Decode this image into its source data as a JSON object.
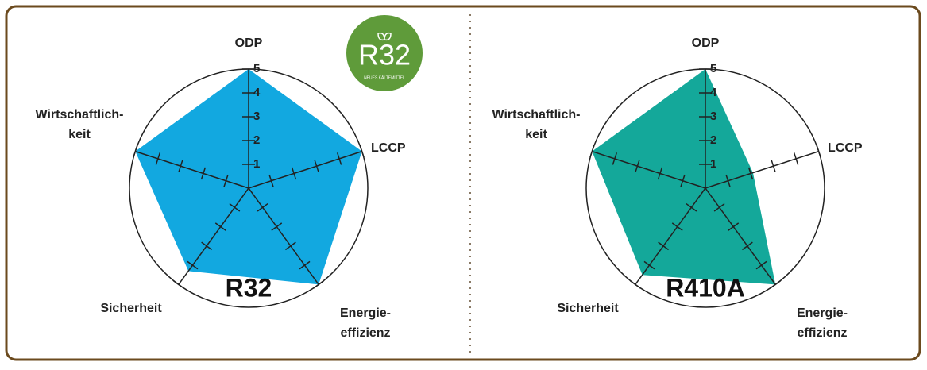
{
  "chart_data": [
    {
      "type": "radar",
      "label": "R32",
      "color": "#12a8e0",
      "categories": [
        [
          "ODP"
        ],
        [
          "LCCP"
        ],
        [
          "Energie-",
          "effizienz"
        ],
        [
          "Sicherheit"
        ],
        [
          "Wirtschaftlich-",
          "keit"
        ]
      ],
      "values": [
        5,
        5,
        5,
        4.3,
        5
      ],
      "rlim": [
        0,
        5
      ],
      "rticks": [
        1,
        2,
        3,
        4,
        5
      ]
    },
    {
      "type": "radar",
      "label": "R410A",
      "color": "#14a89a",
      "categories": [
        [
          "ODP"
        ],
        [
          "LCCP"
        ],
        [
          "Energie-",
          "effizienz"
        ],
        [
          "Sicherheit"
        ],
        [
          "Wirtschaftlich-",
          "keit"
        ]
      ],
      "values": [
        5,
        2.1,
        5,
        4.5,
        5
      ],
      "rlim": [
        0,
        5
      ],
      "rticks": [
        1,
        2,
        3,
        4,
        5
      ]
    }
  ],
  "logo": {
    "title": "R32",
    "subtitle": "NEUES KÄLTEMITTEL"
  }
}
